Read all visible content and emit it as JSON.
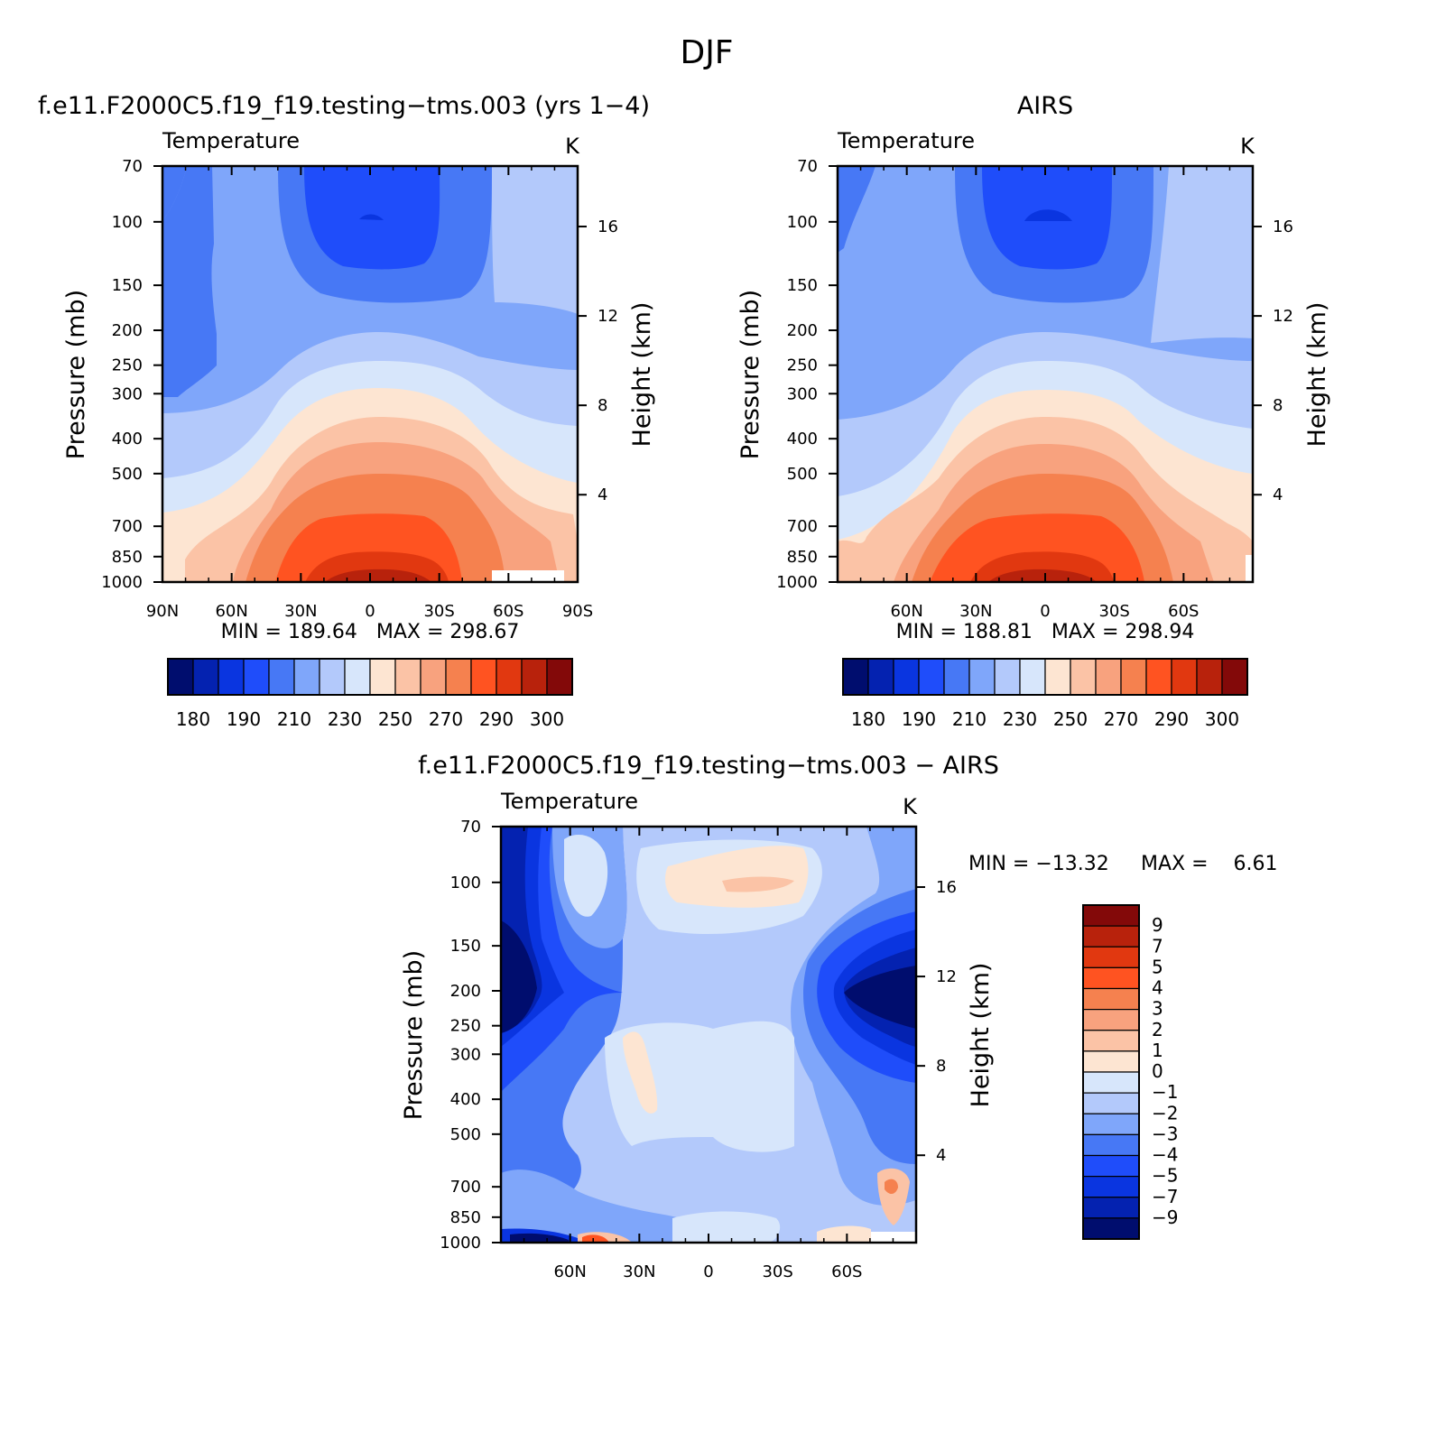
{
  "figure": {
    "title": "DJF"
  },
  "colors": {
    "temperature_levels": [
      "#000d6e",
      "#0422b0",
      "#0a35e0",
      "#1f4dfa",
      "#4778f5",
      "#7fa6fa",
      "#b3c9fb",
      "#d7e6fb",
      "#fde5d2",
      "#fbc3a6",
      "#f8a27e",
      "#f5814f",
      "#ff5321",
      "#e13810",
      "#b8220c",
      "#830909"
    ],
    "difference_levels": [
      "#000d6e",
      "#0422b0",
      "#0a35e0",
      "#1f4dfa",
      "#4778f5",
      "#7fa6fa",
      "#b3c9fb",
      "#d7e6fb",
      "#fde5d2",
      "#fbc3a6",
      "#f8a27e",
      "#f5814f",
      "#ff5321",
      "#e13810",
      "#b8220c",
      "#830909"
    ]
  },
  "chart_data": [
    {
      "type": "contour",
      "title": "f.e11.F2000C5.f19_f19.testing−tms.003 (yrs 1−4)",
      "left_label": "Temperature",
      "right_label": "K",
      "ylabel": "Pressure (mb)",
      "ylabel_right": "Height (km)",
      "x_ticks": [
        "90N",
        "60N",
        "30N",
        "0",
        "30S",
        "60S",
        "90S"
      ],
      "y_ticks": [
        "70",
        "100",
        "150",
        "200",
        "250",
        "300",
        "400",
        "500",
        "700",
        "850",
        "1000"
      ],
      "y_ticks_right": [
        "16",
        "12",
        "8",
        "4"
      ],
      "stats": "MIN = 189.64   MAX = 298.67",
      "colorbar_labels": [
        "180",
        "190",
        "210",
        "230",
        "250",
        "270",
        "290",
        "300"
      ]
    },
    {
      "type": "contour",
      "title": "AIRS",
      "left_label": "Temperature",
      "right_label": "K",
      "ylabel": "Pressure (mb)",
      "ylabel_right": "Height (km)",
      "x_ticks": [
        "60N",
        "30N",
        "0",
        "30S",
        "60S"
      ],
      "y_ticks": [
        "70",
        "100",
        "150",
        "200",
        "250",
        "300",
        "400",
        "500",
        "700",
        "850",
        "1000"
      ],
      "y_ticks_right": [
        "16",
        "12",
        "8",
        "4"
      ],
      "stats": "MIN = 188.81   MAX = 298.94",
      "colorbar_labels": [
        "180",
        "190",
        "210",
        "230",
        "250",
        "270",
        "290",
        "300"
      ]
    },
    {
      "type": "contour",
      "title": "f.e11.F2000C5.f19_f19.testing−tms.003 − AIRS",
      "left_label": "Temperature",
      "right_label": "K",
      "ylabel": "Pressure (mb)",
      "ylabel_right": "Height (km)",
      "x_ticks": [
        "60N",
        "30N",
        "0",
        "30S",
        "60S"
      ],
      "y_ticks": [
        "70",
        "100",
        "150",
        "200",
        "250",
        "300",
        "400",
        "500",
        "700",
        "850",
        "1000"
      ],
      "y_ticks_right": [
        "16",
        "12",
        "8",
        "4"
      ],
      "stats_min": "MIN = −13.32",
      "stats_max": "MAX =    6.61",
      "colorbar_labels": [
        "9",
        "7",
        "5",
        "4",
        "3",
        "2",
        "1",
        "0",
        "−1",
        "−2",
        "−3",
        "−4",
        "−5",
        "−7",
        "−9"
      ]
    }
  ]
}
